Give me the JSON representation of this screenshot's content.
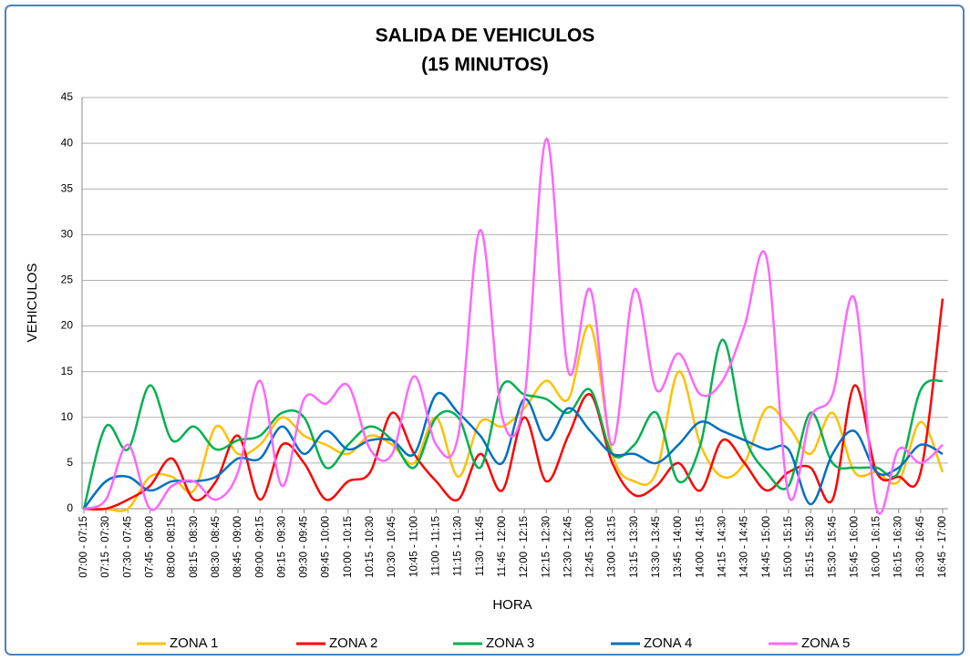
{
  "chart_data": {
    "type": "line",
    "title": "SALIDA DE VEHICULOS",
    "subtitle": "(15 MINUTOS)",
    "x_label": "HORA",
    "y_label": "VEHICULOS",
    "categories": [
      "07:00 - 07:15",
      "07:15 - 07:30",
      "07:30 - 07:45",
      "07:45 - 08:00",
      "08:00 - 08:15",
      "08:15 - 08:30",
      "08:30 - 08:45",
      "08:45 - 09:00",
      "09:00 - 09:15",
      "09:15 - 09:30",
      "09:30 - 09:45",
      "09:45 - 10:00",
      "10:00 - 10:15",
      "10:15 - 10:30",
      "10:30 - 10:45",
      "10:45 - 11:00",
      "11:00 - 11:15",
      "11:15 - 11:30",
      "11:30 - 11:45",
      "11:45 - 12:00",
      "12:00 - 12:15",
      "12:15 - 12:30",
      "12:30 - 12:45",
      "12:45 - 13:00",
      "13:00 - 13:15",
      "13:15 - 13:30",
      "13:30 - 13:45",
      "13:45 - 14:00",
      "14:00 - 14:15",
      "14:15 - 14:30",
      "14:30 - 14:45",
      "14:45 - 15:00",
      "15:00 - 15:15",
      "15:15 - 15:30",
      "15:30 - 15:45",
      "15:45 - 16:00",
      "16:00 - 16:15",
      "16:15 - 16:30",
      "16:30 - 16:45",
      "16:45 - 17:00"
    ],
    "series": [
      {
        "name": "ZONA 1",
        "color": "#ffc000",
        "values": [
          0,
          0,
          0,
          3.5,
          3.5,
          2,
          9,
          6,
          7,
          10,
          8,
          7,
          6,
          8,
          7,
          5,
          10,
          3.5,
          9.5,
          9,
          11,
          14,
          12,
          20,
          6,
          3,
          4,
          15,
          7,
          3.5,
          5,
          11,
          9,
          6,
          10.5,
          4,
          4,
          3,
          9.5,
          4
        ]
      },
      {
        "name": "ZONA 2",
        "color": "#ff0000",
        "values": [
          0,
          0,
          1,
          2.5,
          5.5,
          1,
          3,
          8,
          1,
          7,
          5,
          1,
          3,
          4,
          10.5,
          6,
          3,
          1,
          6,
          2,
          10,
          3,
          8,
          12.5,
          5,
          1.5,
          2.5,
          5,
          2,
          7.5,
          5,
          2,
          4,
          4.5,
          1,
          13.5,
          4,
          3.5,
          4,
          23
        ]
      },
      {
        "name": "ZONA 3",
        "color": "#00b050",
        "values": [
          0,
          9,
          6.5,
          13.5,
          7.5,
          9,
          6.5,
          7.5,
          8,
          10.5,
          10,
          4.5,
          7,
          9,
          7.5,
          4.5,
          10,
          10,
          4.5,
          13.5,
          12.5,
          12,
          10.5,
          13,
          6,
          7,
          10.5,
          3,
          7,
          18.5,
          8,
          4,
          2.5,
          10.5,
          5,
          4.5,
          4.5,
          4,
          13,
          14
        ]
      },
      {
        "name": "ZONA 4",
        "color": "#0070c0",
        "values": [
          0,
          3,
          3.5,
          2,
          3,
          3,
          3.5,
          5.5,
          5.5,
          9,
          6,
          8.5,
          6.5,
          7.5,
          7.5,
          6,
          12.5,
          10.5,
          8,
          5,
          12,
          7.5,
          11,
          8.5,
          6,
          6,
          5,
          7,
          9.5,
          8.5,
          7.5,
          6.5,
          6.5,
          0.5,
          6,
          8.5,
          4,
          4.5,
          7,
          6
        ]
      },
      {
        "name": "ZONA 5",
        "color": "#ff66ff",
        "values": [
          0,
          1,
          7,
          0,
          2.5,
          3,
          1,
          4,
          14,
          2.5,
          12,
          11.5,
          13.5,
          6.5,
          6,
          14.5,
          7,
          8,
          30.5,
          10,
          12,
          40.5,
          15,
          24,
          7,
          24,
          13,
          17,
          12.5,
          14,
          20,
          27.5,
          1.5,
          10,
          12.5,
          23,
          0,
          6.5,
          5,
          7
        ]
      }
    ],
    "ylim": [
      0,
      45
    ],
    "yticks": [
      0,
      5,
      10,
      15,
      20,
      25,
      30,
      35,
      40,
      45
    ],
    "grid": true,
    "legend": "bottom"
  }
}
